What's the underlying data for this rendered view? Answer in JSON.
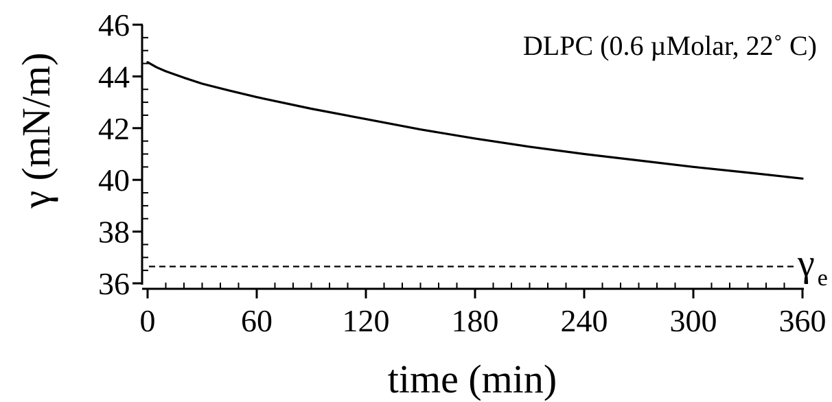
{
  "chart_data": {
    "type": "line",
    "title": "",
    "annotation": "DLPC (0.6 µMolar, 22˚ C)",
    "xlabel": "time (min)",
    "ylabel": "γ (mN/m)",
    "xlim": [
      0,
      360
    ],
    "ylim": [
      36,
      46
    ],
    "x_ticks": [
      0,
      60,
      120,
      180,
      240,
      300,
      360
    ],
    "y_ticks": [
      36,
      38,
      40,
      42,
      44,
      46
    ],
    "x_minor_step": 10,
    "y_minor_step": 0.5,
    "grid": false,
    "legend": "none",
    "series": [
      {
        "style": "solid",
        "x": [
          0,
          5,
          10,
          20,
          30,
          45,
          60,
          90,
          120,
          150,
          180,
          210,
          240,
          270,
          300,
          330,
          360
        ],
        "y": [
          44.55,
          44.35,
          44.2,
          43.95,
          43.72,
          43.45,
          43.2,
          42.75,
          42.35,
          41.95,
          41.6,
          41.28,
          41.0,
          40.75,
          40.5,
          40.28,
          40.05
        ]
      }
    ],
    "reference_line": {
      "label": "γ",
      "subscript": "e",
      "y": 36.65,
      "style": "dashed"
    }
  }
}
